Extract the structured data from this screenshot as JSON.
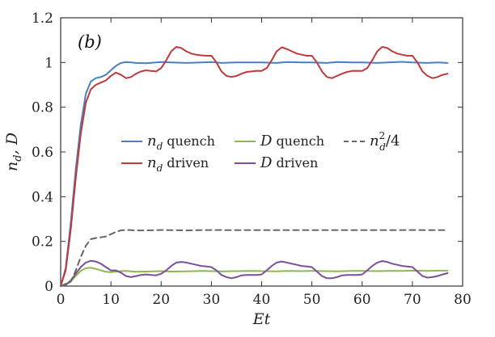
{
  "chart_data": {
    "type": "line",
    "panel_label": "(b)",
    "xlabel": "Et",
    "ylabel": "n_d, D",
    "xlim": [
      0,
      80
    ],
    "ylim": [
      0,
      1.2
    ],
    "xticks": [
      0,
      10,
      20,
      30,
      40,
      50,
      60,
      70,
      80
    ],
    "xtick_labels": [
      "0",
      "10",
      "20",
      "30",
      "40",
      "50",
      "60",
      "70",
      "80"
    ],
    "yticks": [
      0,
      0.2,
      0.4,
      0.6,
      0.8,
      1.0,
      1.2
    ],
    "ytick_labels": [
      "0",
      "0.2",
      "0.4",
      "0.6",
      "0.8",
      "1",
      "1.2"
    ],
    "grid": false,
    "legend_position": "center",
    "series": [
      {
        "name": "n_d quench",
        "label_text": "quench",
        "label_math": "n",
        "label_sub": "d",
        "color": "#4a7fc1",
        "dash": "solid",
        "x": [
          0,
          1,
          2,
          3,
          4,
          5,
          6,
          7,
          8,
          9,
          10,
          11,
          12,
          13,
          14,
          15,
          17,
          20,
          22,
          25,
          28,
          30,
          32,
          35,
          38,
          40,
          43,
          45,
          48,
          50,
          53,
          55,
          58,
          60,
          63,
          65,
          68,
          70,
          73,
          75,
          77
        ],
        "y": [
          0,
          0.08,
          0.28,
          0.52,
          0.72,
          0.86,
          0.915,
          0.93,
          0.935,
          0.945,
          0.965,
          0.985,
          0.998,
          1.002,
          1.0,
          0.998,
          0.997,
          1.002,
          1.0,
          0.998,
          1.0,
          1.002,
          0.998,
          1.0,
          1.0,
          1.0,
          0.998,
          1.002,
          1.0,
          1.0,
          0.998,
          1.002,
          1.0,
          1.0,
          0.998,
          1.0,
          1.003,
          1.0,
          0.998,
          1.0,
          0.998
        ]
      },
      {
        "name": "n_d driven",
        "label_text": "driven",
        "label_math": "n",
        "label_sub": "d",
        "color": "#c0393b",
        "dash": "solid",
        "x": [
          0,
          1,
          2,
          3,
          4,
          5,
          6,
          7,
          8,
          9,
          10,
          11,
          12,
          13,
          14,
          15,
          16,
          17,
          18,
          19,
          20,
          21,
          22,
          23,
          24,
          25,
          26,
          27,
          28,
          29,
          30,
          31,
          32,
          33,
          34,
          35,
          36,
          37,
          38,
          39,
          40,
          41,
          42,
          43,
          44,
          45,
          46,
          47,
          48,
          49,
          50,
          51,
          52,
          53,
          54,
          55,
          56,
          57,
          58,
          59,
          60,
          61,
          62,
          63,
          64,
          65,
          66,
          67,
          68,
          69,
          70,
          71,
          72,
          73,
          74,
          75,
          76,
          77
        ],
        "y": [
          0,
          0.07,
          0.25,
          0.48,
          0.68,
          0.82,
          0.88,
          0.9,
          0.91,
          0.92,
          0.94,
          0.955,
          0.945,
          0.93,
          0.935,
          0.95,
          0.96,
          0.965,
          0.962,
          0.96,
          0.975,
          1.01,
          1.05,
          1.07,
          1.065,
          1.05,
          1.04,
          1.035,
          1.032,
          1.03,
          1.03,
          1.0,
          0.96,
          0.94,
          0.935,
          0.94,
          0.95,
          0.958,
          0.96,
          0.963,
          0.962,
          0.975,
          1.01,
          1.05,
          1.068,
          1.06,
          1.05,
          1.04,
          1.035,
          1.03,
          1.03,
          1.0,
          0.96,
          0.935,
          0.93,
          0.94,
          0.95,
          0.958,
          0.962,
          0.963,
          0.962,
          0.975,
          1.01,
          1.05,
          1.07,
          1.065,
          1.05,
          1.04,
          1.035,
          1.03,
          1.03,
          1.0,
          0.96,
          0.94,
          0.93,
          0.935,
          0.945,
          0.95
        ]
      },
      {
        "name": "D quench",
        "label_text": "quench",
        "label_math": "D",
        "label_sub": "",
        "color": "#8db84a",
        "dash": "solid",
        "x": [
          0,
          1,
          2,
          3,
          4,
          5,
          6,
          7,
          8,
          9,
          10,
          11,
          12,
          13,
          14,
          15,
          17,
          20,
          22,
          25,
          28,
          30,
          32,
          35,
          38,
          40,
          43,
          45,
          48,
          50,
          53,
          55,
          58,
          60,
          63,
          65,
          68,
          70,
          73,
          75,
          77
        ],
        "y": [
          0,
          0.005,
          0.02,
          0.045,
          0.068,
          0.08,
          0.082,
          0.077,
          0.07,
          0.064,
          0.062,
          0.064,
          0.067,
          0.068,
          0.066,
          0.064,
          0.065,
          0.067,
          0.065,
          0.066,
          0.068,
          0.067,
          0.066,
          0.067,
          0.068,
          0.067,
          0.066,
          0.068,
          0.067,
          0.068,
          0.067,
          0.066,
          0.068,
          0.068,
          0.067,
          0.068,
          0.068,
          0.069,
          0.068,
          0.069,
          0.069
        ]
      },
      {
        "name": "D driven",
        "label_text": "driven",
        "label_math": "D",
        "label_sub": "",
        "color": "#7b4f9d",
        "dash": "solid",
        "x": [
          0,
          1,
          2,
          3,
          4,
          5,
          6,
          7,
          8,
          9,
          10,
          11,
          12,
          13,
          14,
          15,
          16,
          17,
          18,
          19,
          20,
          21,
          22,
          23,
          24,
          25,
          26,
          27,
          28,
          29,
          30,
          31,
          32,
          33,
          34,
          35,
          36,
          37,
          38,
          39,
          40,
          41,
          42,
          43,
          44,
          45,
          46,
          47,
          48,
          49,
          50,
          51,
          52,
          53,
          54,
          55,
          56,
          57,
          58,
          59,
          60,
          61,
          62,
          63,
          64,
          65,
          66,
          67,
          68,
          69,
          70,
          71,
          72,
          73,
          74,
          75,
          76,
          77
        ],
        "y": [
          0,
          0.005,
          0.025,
          0.055,
          0.085,
          0.105,
          0.113,
          0.11,
          0.1,
          0.085,
          0.07,
          0.07,
          0.06,
          0.045,
          0.04,
          0.045,
          0.05,
          0.052,
          0.05,
          0.048,
          0.055,
          0.07,
          0.09,
          0.105,
          0.108,
          0.105,
          0.1,
          0.095,
          0.09,
          0.088,
          0.085,
          0.07,
          0.05,
          0.04,
          0.035,
          0.04,
          0.048,
          0.05,
          0.05,
          0.05,
          0.052,
          0.07,
          0.09,
          0.105,
          0.11,
          0.105,
          0.1,
          0.095,
          0.09,
          0.088,
          0.085,
          0.065,
          0.045,
          0.035,
          0.035,
          0.04,
          0.048,
          0.05,
          0.05,
          0.05,
          0.052,
          0.07,
          0.09,
          0.105,
          0.112,
          0.108,
          0.1,
          0.095,
          0.09,
          0.088,
          0.085,
          0.065,
          0.045,
          0.038,
          0.04,
          0.045,
          0.052,
          0.058
        ]
      },
      {
        "name": "n_d^2/4",
        "label_text": "/4",
        "label_math": "n",
        "label_sub": "d",
        "label_sup": "2",
        "color": "#666666",
        "dash": "dashed",
        "x": [
          0,
          2,
          3,
          4,
          5,
          6,
          7,
          8,
          9,
          10,
          11,
          12,
          13,
          14,
          15,
          17,
          20,
          22,
          25,
          28,
          30,
          35,
          40,
          45,
          50,
          55,
          60,
          65,
          70,
          75,
          77
        ],
        "y": [
          0,
          0.02,
          0.068,
          0.13,
          0.18,
          0.21,
          0.215,
          0.218,
          0.222,
          0.232,
          0.242,
          0.249,
          0.251,
          0.25,
          0.249,
          0.249,
          0.251,
          0.25,
          0.249,
          0.25,
          0.251,
          0.25,
          0.25,
          0.25,
          0.25,
          0.25,
          0.25,
          0.25,
          0.251,
          0.25,
          0.25
        ]
      }
    ]
  }
}
